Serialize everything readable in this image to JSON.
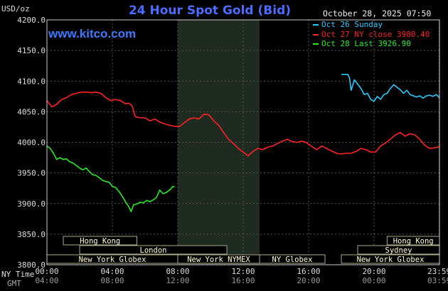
{
  "header": {
    "title": "24 Hour Spot Gold (Bid)",
    "unit": "USD/oz",
    "website": "www.kitco.com",
    "timestamp": "October 28, 2025 07:50"
  },
  "legend": [
    {
      "label": "Oct 26 Sunday",
      "color": "#22ccff"
    },
    {
      "label": "Oct 27 NY close 3980.40",
      "color": "#ff2222"
    },
    {
      "label": "Oct 28 Last 3926.90",
      "color": "#22ee22"
    }
  ],
  "axis_labels": {
    "ny_time_label": "NY Time",
    "gmt_label": "GMT"
  },
  "sessions": [
    {
      "name": "Hong Kong",
      "row": 1,
      "start": 1.0,
      "end": 5.5
    },
    {
      "name": "Hong Kong",
      "row": 1,
      "start": 20.8,
      "end": 24.0
    },
    {
      "name": "London",
      "row": 2,
      "start": 2.0,
      "end": 11.0
    },
    {
      "name": "Sydney",
      "row": 2,
      "start": 19.0,
      "end": 24.0
    },
    {
      "name": "New York Globex",
      "row": 3,
      "start": 0.0,
      "end": 8.0
    },
    {
      "name": "New York NYMEX",
      "row": 3,
      "start": 8.0,
      "end": 13.0
    },
    {
      "name": "NY Globex",
      "row": 3,
      "start": 13.0,
      "end": 17.0
    },
    {
      "name": "New York Globex",
      "row": 3,
      "start": 18.0,
      "end": 24.0
    }
  ],
  "colors": {
    "grid": "#555555",
    "frame": "#cccccc",
    "shade": "#1f2a20",
    "session_border": "#aaaa88",
    "session_text": "#ffffcc"
  },
  "chart_data": {
    "type": "line",
    "ylim": [
      3800,
      4200
    ],
    "xlim": [
      0,
      24
    ],
    "y_ticks": [
      {
        "value": 3800,
        "label": "3800.0"
      },
      {
        "value": 3850,
        "label": "3850.0"
      },
      {
        "value": 3900,
        "label": "3900.0"
      },
      {
        "value": 3950,
        "label": "3950.0"
      },
      {
        "value": 4000,
        "label": "4000.0"
      },
      {
        "value": 4050,
        "label": "4050.0"
      },
      {
        "value": 4100,
        "label": "4100.0"
      },
      {
        "value": 4150,
        "label": "4150.0"
      },
      {
        "value": 4200,
        "label": "4200.0"
      }
    ],
    "x_ticks": [
      {
        "value": 0,
        "ny": "00:00",
        "gmt": "04:00"
      },
      {
        "value": 4,
        "ny": "04:00",
        "gmt": "08:00"
      },
      {
        "value": 8,
        "ny": "08:00",
        "gmt": "12:00"
      },
      {
        "value": 12,
        "ny": "12:00",
        "gmt": "16:00"
      },
      {
        "value": 16,
        "ny": "16:00",
        "gmt": "20:00"
      },
      {
        "value": 20,
        "ny": "20:00",
        "gmt": "00:00"
      },
      {
        "value": 23.98,
        "ny": "23:59",
        "gmt": "03:59"
      }
    ],
    "nymex_shade": [
      8.0,
      13.0
    ],
    "grid": true,
    "series": [
      {
        "name": "Oct 26 Sunday",
        "color": "#22ccff",
        "points": [
          [
            18.0,
            4111
          ],
          [
            18.4,
            4111
          ],
          [
            18.5,
            4105
          ],
          [
            18.6,
            4085
          ],
          [
            18.8,
            4102
          ],
          [
            19.0,
            4095
          ],
          [
            19.2,
            4088
          ],
          [
            19.4,
            4078
          ],
          [
            19.6,
            4080
          ],
          [
            19.8,
            4070
          ],
          [
            20.0,
            4067
          ],
          [
            20.2,
            4075
          ],
          [
            20.4,
            4070
          ],
          [
            20.6,
            4078
          ],
          [
            20.8,
            4080
          ],
          [
            21.0,
            4088
          ],
          [
            21.2,
            4094
          ],
          [
            21.4,
            4090
          ],
          [
            21.6,
            4086
          ],
          [
            21.8,
            4080
          ],
          [
            22.0,
            4085
          ],
          [
            22.2,
            4078
          ],
          [
            22.4,
            4076
          ],
          [
            22.6,
            4074
          ],
          [
            22.8,
            4076
          ],
          [
            23.0,
            4072
          ],
          [
            23.2,
            4076
          ],
          [
            23.4,
            4077
          ],
          [
            23.6,
            4075
          ],
          [
            23.8,
            4078
          ],
          [
            24.0,
            4073
          ]
        ]
      },
      {
        "name": "Oct 27 NY close 3980.40",
        "color": "#ff2222",
        "points": [
          [
            0.0,
            4068
          ],
          [
            0.3,
            4058
          ],
          [
            0.6,
            4062
          ],
          [
            0.9,
            4070
          ],
          [
            1.2,
            4073
          ],
          [
            1.5,
            4078
          ],
          [
            1.8,
            4080
          ],
          [
            2.1,
            4082
          ],
          [
            2.4,
            4082
          ],
          [
            2.7,
            4081
          ],
          [
            3.0,
            4082
          ],
          [
            3.3,
            4080
          ],
          [
            3.6,
            4073
          ],
          [
            3.9,
            4068
          ],
          [
            4.2,
            4070
          ],
          [
            4.5,
            4068
          ],
          [
            4.8,
            4063
          ],
          [
            5.0,
            4064
          ],
          [
            5.2,
            4060
          ],
          [
            5.4,
            4042
          ],
          [
            5.7,
            4040
          ],
          [
            6.0,
            4040
          ],
          [
            6.3,
            4035
          ],
          [
            6.6,
            4038
          ],
          [
            6.9,
            4033
          ],
          [
            7.2,
            4030
          ],
          [
            7.5,
            4028
          ],
          [
            7.8,
            4026
          ],
          [
            8.1,
            4026
          ],
          [
            8.4,
            4032
          ],
          [
            8.7,
            4038
          ],
          [
            9.0,
            4040
          ],
          [
            9.3,
            4038
          ],
          [
            9.6,
            4046
          ],
          [
            9.9,
            4045
          ],
          [
            10.2,
            4035
          ],
          [
            10.5,
            4028
          ],
          [
            10.8,
            4016
          ],
          [
            11.1,
            4005
          ],
          [
            11.4,
            3998
          ],
          [
            11.7,
            3990
          ],
          [
            12.0,
            3984
          ],
          [
            12.3,
            3978
          ],
          [
            12.6,
            3985
          ],
          [
            12.9,
            3990
          ],
          [
            13.2,
            3988
          ],
          [
            13.5,
            3992
          ],
          [
            13.8,
            3994
          ],
          [
            14.1,
            3998
          ],
          [
            14.4,
            4002
          ],
          [
            14.7,
            4005
          ],
          [
            15.0,
            4001
          ],
          [
            15.3,
            4000
          ],
          [
            15.6,
            4002
          ],
          [
            15.9,
            3999
          ],
          [
            16.2,
            3993
          ],
          [
            16.5,
            3988
          ],
          [
            16.8,
            3994
          ],
          [
            17.1,
            3990
          ],
          [
            17.4,
            3986
          ],
          [
            17.7,
            3982
          ],
          [
            18.0,
            3981
          ],
          [
            18.3,
            3982
          ],
          [
            18.6,
            3982
          ],
          [
            18.9,
            3985
          ],
          [
            19.2,
            3990
          ],
          [
            19.5,
            3988
          ],
          [
            19.8,
            3984
          ],
          [
            20.1,
            3984
          ],
          [
            20.4,
            3994
          ],
          [
            20.7,
            3999
          ],
          [
            21.0,
            4005
          ],
          [
            21.3,
            4012
          ],
          [
            21.6,
            4016
          ],
          [
            21.9,
            4010
          ],
          [
            22.2,
            4014
          ],
          [
            22.5,
            4012
          ],
          [
            22.8,
            4005
          ],
          [
            23.1,
            3995
          ],
          [
            23.4,
            3990
          ],
          [
            23.7,
            3991
          ],
          [
            24.0,
            3993
          ]
        ]
      },
      {
        "name": "Oct 28 Last 3926.90",
        "color": "#22ee22",
        "points": [
          [
            0.0,
            3994
          ],
          [
            0.2,
            3990
          ],
          [
            0.4,
            3982
          ],
          [
            0.6,
            3972
          ],
          [
            0.8,
            3975
          ],
          [
            1.0,
            3972
          ],
          [
            1.2,
            3973
          ],
          [
            1.4,
            3968
          ],
          [
            1.6,
            3966
          ],
          [
            1.8,
            3962
          ],
          [
            2.0,
            3958
          ],
          [
            2.2,
            3955
          ],
          [
            2.4,
            3958
          ],
          [
            2.6,
            3952
          ],
          [
            2.8,
            3947
          ],
          [
            3.0,
            3946
          ],
          [
            3.2,
            3942
          ],
          [
            3.4,
            3938
          ],
          [
            3.6,
            3936
          ],
          [
            3.8,
            3935
          ],
          [
            4.0,
            3928
          ],
          [
            4.2,
            3926
          ],
          [
            4.4,
            3920
          ],
          [
            4.6,
            3912
          ],
          [
            4.8,
            3903
          ],
          [
            5.0,
            3895
          ],
          [
            5.15,
            3887
          ],
          [
            5.3,
            3898
          ],
          [
            5.5,
            3899
          ],
          [
            5.7,
            3902
          ],
          [
            5.9,
            3901
          ],
          [
            6.1,
            3905
          ],
          [
            6.3,
            3903
          ],
          [
            6.5,
            3906
          ],
          [
            6.7,
            3910
          ],
          [
            6.9,
            3922
          ],
          [
            7.1,
            3916
          ],
          [
            7.3,
            3918
          ],
          [
            7.5,
            3922
          ],
          [
            7.7,
            3928
          ],
          [
            7.8,
            3927
          ]
        ]
      }
    ]
  }
}
